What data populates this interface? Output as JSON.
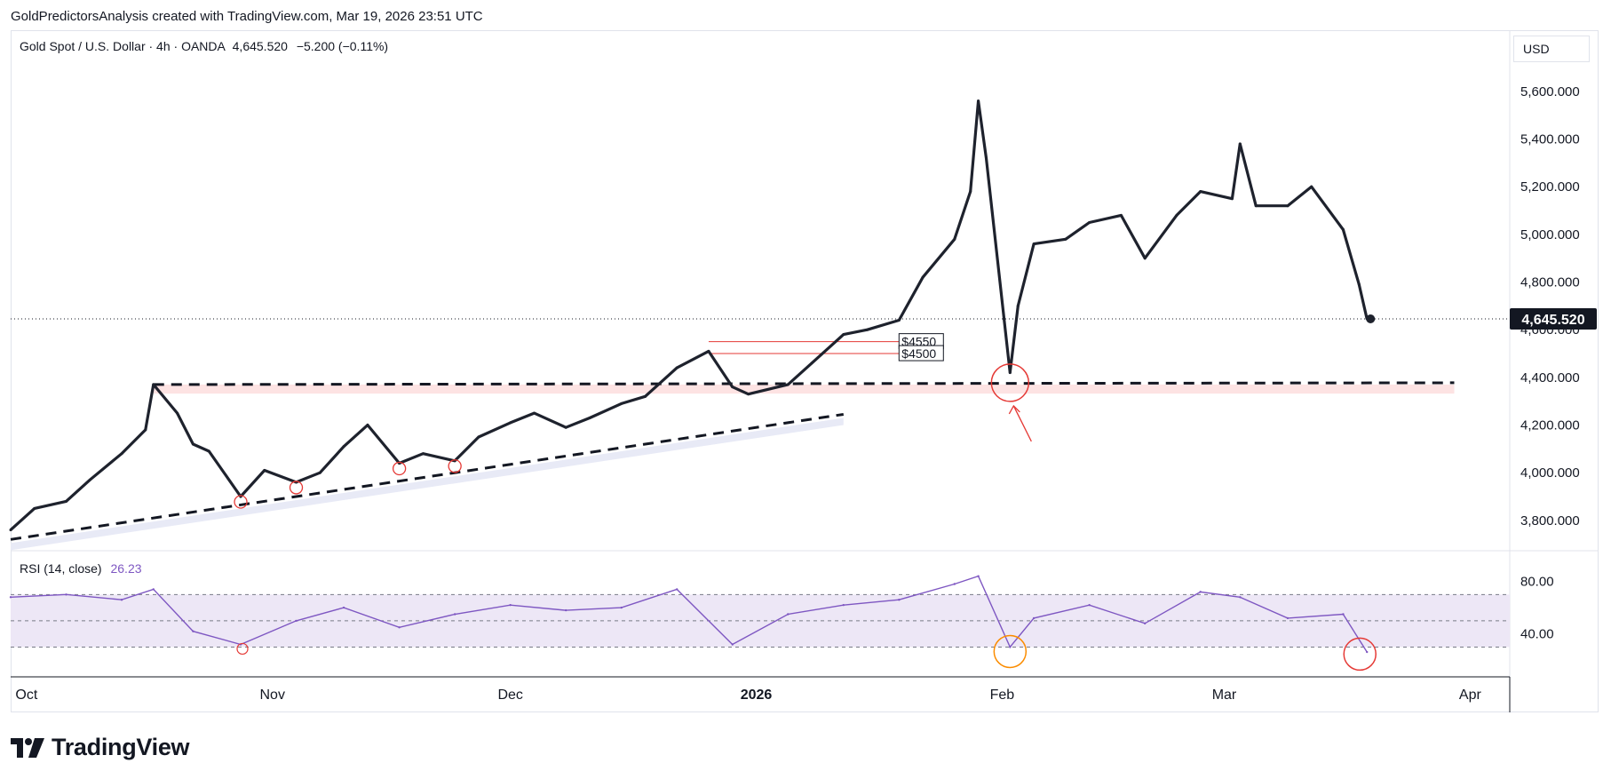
{
  "header": {
    "attribution": "GoldPredictorsAnalysis created with TradingView.com, Mar 19, 2026 23:51 UTC"
  },
  "legend": {
    "symbol": "Gold Spot / U.S. Dollar · 4h · OANDA",
    "last": "4,645.520",
    "change": "−5.200 (−0.11%)"
  },
  "currency_button": "USD",
  "last_price_label": "4,645.520",
  "rsi_legend": {
    "name": "RSI (14, close)",
    "value": "26.23"
  },
  "annotations": {
    "label_4550": "$4550",
    "label_4500": "$4500"
  },
  "footer": {
    "brand": "TradingView"
  },
  "colors": {
    "price_line": "#1e222d",
    "rsi_line": "#7e57c2",
    "rsi_band": "#ede7f6",
    "support_zone": "#fde3e3",
    "marker_red": "#e53935",
    "marker_orange": "#fb8c00",
    "trend_shade": "#e8eaf6"
  },
  "chart_data": [
    {
      "type": "line",
      "title": "Gold Spot / U.S. Dollar · 4h · OANDA",
      "yaxis_ticks": [
        "5,600.000",
        "5,400.000",
        "5,200.000",
        "5,000.000",
        "4,800.000",
        "4,600.000",
        "4,400.000",
        "4,200.000",
        "4,000.000",
        "3,800.000"
      ],
      "xaxis_ticks": [
        "Oct",
        "Nov",
        "Dec",
        "2026",
        "Feb",
        "Mar",
        "Apr"
      ],
      "ylim": [
        3710,
        5760
      ],
      "x": [
        "2025-09-29",
        "2025-10-02",
        "2025-10-06",
        "2025-10-09",
        "2025-10-13",
        "2025-10-16",
        "2025-10-17",
        "2025-10-20",
        "2025-10-22",
        "2025-10-24",
        "2025-10-28",
        "2025-10-31",
        "2025-11-04",
        "2025-11-07",
        "2025-11-10",
        "2025-11-13",
        "2025-11-17",
        "2025-11-20",
        "2025-11-24",
        "2025-11-27",
        "2025-12-01",
        "2025-12-04",
        "2025-12-08",
        "2025-12-11",
        "2025-12-15",
        "2025-12-18",
        "2025-12-22",
        "2025-12-26",
        "2025-12-29",
        "2025-12-31",
        "2026-01-05",
        "2026-01-08",
        "2026-01-12",
        "2026-01-15",
        "2026-01-19",
        "2026-01-22",
        "2026-01-26",
        "2026-01-28",
        "2026-01-29",
        "2026-01-30",
        "2026-02-02",
        "2026-02-03",
        "2026-02-05",
        "2026-02-09",
        "2026-02-12",
        "2026-02-16",
        "2026-02-19",
        "2026-02-23",
        "2026-02-26",
        "2026-03-02",
        "2026-03-03",
        "2026-03-05",
        "2026-03-09",
        "2026-03-12",
        "2026-03-16",
        "2026-03-18",
        "2026-03-19"
      ],
      "y": [
        3760,
        3850,
        3880,
        3970,
        4080,
        4180,
        4370,
        4250,
        4120,
        4090,
        3900,
        4010,
        3960,
        4000,
        4110,
        4200,
        4040,
        4080,
        4050,
        4150,
        4210,
        4250,
        4190,
        4230,
        4290,
        4320,
        4440,
        4510,
        4360,
        4330,
        4370,
        4460,
        4580,
        4600,
        4640,
        4820,
        4980,
        5180,
        5560,
        5320,
        4420,
        4700,
        4960,
        4980,
        5050,
        5080,
        4900,
        5080,
        5180,
        5150,
        5380,
        5120,
        5120,
        5200,
        5020,
        4790,
        4645.52
      ],
      "series": [
        {
          "name": "Gold Spot / U.S. Dollar",
          "values": [
            3760,
            3850,
            3880,
            3970,
            4080,
            4180,
            4370,
            4250,
            4120,
            4090,
            3900,
            4010,
            3960,
            4000,
            4110,
            4200,
            4040,
            4080,
            4050,
            4150,
            4210,
            4250,
            4190,
            4230,
            4290,
            4320,
            4440,
            4510,
            4360,
            4330,
            4370,
            4460,
            4580,
            4600,
            4640,
            4820,
            4980,
            5180,
            5560,
            5320,
            4420,
            4700,
            4960,
            4980,
            5050,
            5080,
            4900,
            5080,
            5180,
            5150,
            5380,
            5120,
            5120,
            5200,
            5020,
            4790,
            4645.52
          ]
        }
      ],
      "levels": [
        4550,
        4500,
        4370
      ]
    },
    {
      "type": "line",
      "title": "RSI (14, close)",
      "yaxis_ticks": [
        "80.00",
        "40.00"
      ],
      "ylim": [
        10,
        100
      ],
      "bands": [
        30,
        50,
        70
      ],
      "x": [
        "2025-09-29",
        "2025-10-06",
        "2025-10-13",
        "2025-10-17",
        "2025-10-22",
        "2025-10-28",
        "2025-11-04",
        "2025-11-10",
        "2025-11-17",
        "2025-11-24",
        "2025-12-01",
        "2025-12-08",
        "2025-12-15",
        "2025-12-22",
        "2025-12-29",
        "2026-01-05",
        "2026-01-12",
        "2026-01-19",
        "2026-01-26",
        "2026-01-29",
        "2026-02-02",
        "2026-02-05",
        "2026-02-12",
        "2026-02-19",
        "2026-02-26",
        "2026-03-03",
        "2026-03-09",
        "2026-03-16",
        "2026-03-19"
      ],
      "values": [
        68,
        70,
        66,
        74,
        42,
        32,
        50,
        60,
        45,
        55,
        62,
        58,
        60,
        74,
        32,
        55,
        62,
        66,
        78,
        84,
        30,
        52,
        62,
        48,
        72,
        68,
        52,
        55,
        26.23
      ]
    }
  ]
}
